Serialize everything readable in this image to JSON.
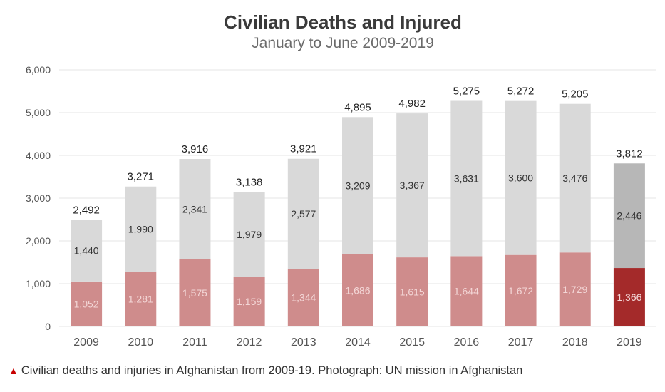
{
  "colors": {
    "injured": "#d9d9d9",
    "deaths": "#cf8c8c",
    "injured_highlight": "#b7b7b7",
    "deaths_highlight": "#a42a2a",
    "gridline": "#e6e6e6",
    "caption_triangle": "#c70000"
  },
  "chart_data": {
    "type": "bar",
    "stacked": true,
    "title": "Civilian Deaths and Injured",
    "subtitle": "January to June 2009-2019",
    "xlabel": "",
    "ylabel": "",
    "ylim": [
      0,
      6000
    ],
    "yticks": [
      0,
      1000,
      2000,
      3000,
      4000,
      5000,
      6000
    ],
    "ytick_labels": [
      "0",
      "1,000",
      "2,000",
      "3,000",
      "4,000",
      "5,000",
      "6,000"
    ],
    "grid": true,
    "legend": "none",
    "categories": [
      "2009",
      "2010",
      "2011",
      "2012",
      "2013",
      "2014",
      "2015",
      "2016",
      "2017",
      "2018",
      "2019"
    ],
    "series": [
      {
        "values": [
          1052,
          1281,
          1575,
          1159,
          1344,
          1686,
          1615,
          1644,
          1672,
          1729,
          1366
        ],
        "labels": [
          "1,052",
          "1,281",
          "1,575",
          "1,159",
          "1,344",
          "1,686",
          "1,615",
          "1,644",
          "1,672",
          "1,729",
          "1,366"
        ]
      },
      {
        "values": [
          1440,
          1990,
          2341,
          1979,
          2577,
          3209,
          3367,
          3631,
          3600,
          3476,
          2446
        ],
        "labels": [
          "1,440",
          "1,990",
          "2,341",
          "1,979",
          "2,577",
          "3,209",
          "3,367",
          "3,631",
          "3,600",
          "3,476",
          "2,446"
        ]
      }
    ],
    "totals": [
      2492,
      3271,
      3916,
      3138,
      3921,
      4895,
      4982,
      5275,
      5272,
      5205,
      3812
    ],
    "total_labels": [
      "2,492",
      "3,271",
      "3,916",
      "3,138",
      "3,921",
      "4,895",
      "4,982",
      "5,275",
      "5,272",
      "5,205",
      "3,812"
    ],
    "highlight_category": "2019"
  },
  "caption": {
    "icon": "triangle-up-icon",
    "text": "Civilian deaths and injuries in Afghanistan from 2009-19. Photograph: UN mission in Afghanistan"
  }
}
